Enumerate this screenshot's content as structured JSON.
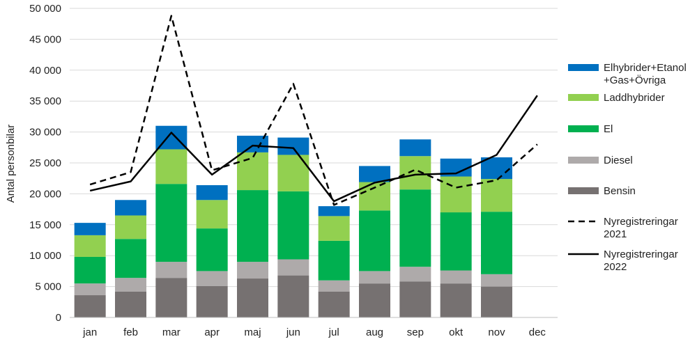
{
  "chart_data": {
    "type": "bar",
    "stacked": true,
    "categories": [
      "jan",
      "feb",
      "mar",
      "apr",
      "maj",
      "jun",
      "jul",
      "aug",
      "sep",
      "okt",
      "nov",
      "dec"
    ],
    "ylabel": "Antal personbilar",
    "ylim": [
      0,
      50000
    ],
    "yticks": [
      "0",
      "5 000",
      "10 000",
      "15 000",
      "20 000",
      "25 000",
      "30 000",
      "35 000",
      "40 000",
      "45 000",
      "50 000"
    ],
    "grid": true,
    "legend_position": "right",
    "series": [
      {
        "name": "Bensin",
        "color": "#767171",
        "values": [
          3600,
          4200,
          6400,
          5100,
          6300,
          6800,
          4200,
          5500,
          5800,
          5500,
          5000,
          null
        ]
      },
      {
        "name": "Diesel",
        "color": "#aeaaaa",
        "values": [
          1900,
          2200,
          2600,
          2400,
          2700,
          2600,
          1800,
          2000,
          2400,
          2100,
          2000,
          null
        ]
      },
      {
        "name": "El",
        "color": "#00b050",
        "values": [
          4300,
          6300,
          12600,
          6900,
          11600,
          11000,
          6400,
          9800,
          12500,
          9400,
          10100,
          null
        ]
      },
      {
        "name": "Laddhybrider",
        "color": "#92d050",
        "values": [
          3500,
          3800,
          5600,
          4600,
          6100,
          5900,
          4000,
          4600,
          5400,
          5800,
          5300,
          null
        ]
      },
      {
        "name": "Elhybrider+Etanol +Gas+Övriga",
        "color": "#0070c0",
        "values": [
          2000,
          2500,
          3800,
          2400,
          2700,
          2800,
          1600,
          2600,
          2700,
          2900,
          3500,
          null
        ]
      }
    ],
    "lines": [
      {
        "name": "Nyregistreringar 2021",
        "style": "dashed",
        "color": "#000000",
        "values": [
          21500,
          23500,
          48800,
          23800,
          25800,
          37800,
          18200,
          21000,
          23900,
          21000,
          22200,
          28000
        ]
      },
      {
        "name": "Nyregistreringar 2022",
        "style": "solid",
        "color": "#000000",
        "values": [
          20500,
          22000,
          29900,
          23100,
          27800,
          27400,
          18800,
          21800,
          23100,
          23300,
          26300,
          35900
        ]
      }
    ],
    "legend": [
      {
        "kind": "box",
        "color": "#0070c0",
        "lines": [
          "Elhybrider+Etanol",
          "+Gas+Övriga"
        ]
      },
      {
        "kind": "box",
        "color": "#92d050",
        "lines": [
          "Laddhybrider"
        ]
      },
      {
        "kind": "box",
        "color": "#00b050",
        "lines": [
          "El"
        ]
      },
      {
        "kind": "box",
        "color": "#aeaaaa",
        "lines": [
          "Diesel"
        ]
      },
      {
        "kind": "box",
        "color": "#767171",
        "lines": [
          "Bensin"
        ]
      },
      {
        "kind": "dashed",
        "color": "#000000",
        "lines": [
          "Nyregistreringar",
          "2021"
        ]
      },
      {
        "kind": "solid",
        "color": "#000000",
        "lines": [
          "Nyregistreringar",
          "2022"
        ]
      }
    ]
  }
}
